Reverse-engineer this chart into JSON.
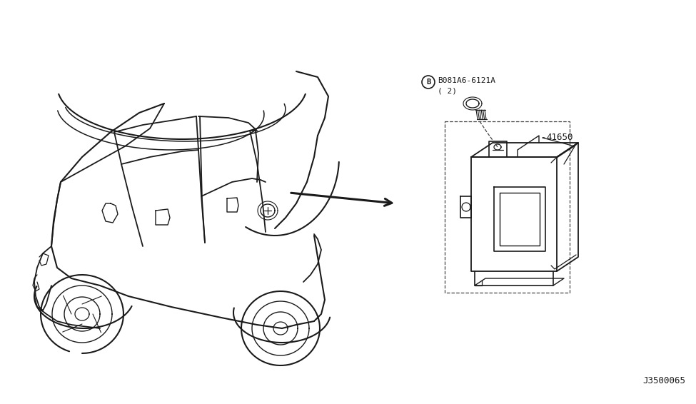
{
  "bg_color": "#ffffff",
  "part_label_41650": "41650",
  "screw_label_line1": "B081A6-6121A",
  "screw_label_line2": "( 2)",
  "diagram_code": "J3500065",
  "line_color": "#1a1a1a",
  "car_color": "#1a1a1a"
}
